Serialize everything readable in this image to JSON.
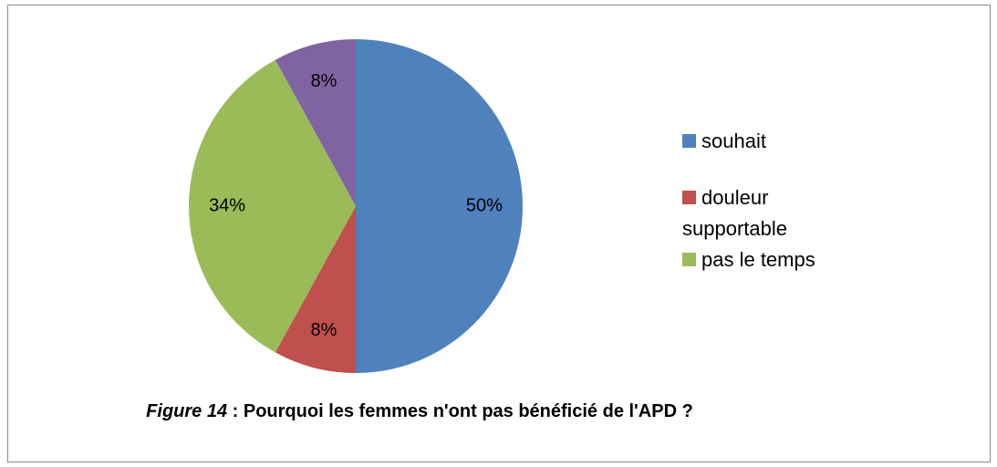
{
  "chart_data": {
    "type": "pie",
    "categories": [
      "souhait",
      "douleur supportable",
      "pas le temps",
      null
    ],
    "values": [
      50,
      8,
      34,
      8
    ],
    "value_labels": [
      "50%",
      "8%",
      "34%",
      "8%"
    ],
    "colors": [
      "#4f81bd",
      "#c0504d",
      "#9bbb59",
      "#8064a2"
    ],
    "legend": "right",
    "caption": {
      "label": "Figure 14",
      "text": " : Pourquoi les femmes n'ont pas bénéficié de l'APD ?"
    }
  }
}
